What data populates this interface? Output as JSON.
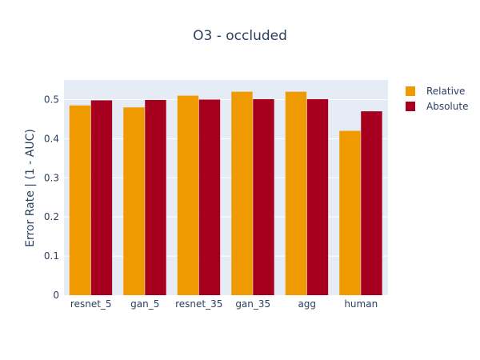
{
  "chart_data": {
    "type": "bar",
    "title": "O3 - occluded",
    "xlabel": "",
    "ylabel": "Error Rate | (1 - AUC)",
    "categories": [
      "resnet_5",
      "gan_5",
      "resnet_35",
      "gan_35",
      "agg",
      "human"
    ],
    "series": [
      {
        "name": "Relative",
        "color": "#ef9a00",
        "values": [
          0.485,
          0.48,
          0.51,
          0.52,
          0.52,
          0.42
        ]
      },
      {
        "name": "Absolute",
        "color": "#a6001e",
        "values": [
          0.498,
          0.499,
          0.5,
          0.501,
          0.501,
          0.47
        ]
      }
    ],
    "ylim": [
      0,
      0.55
    ],
    "yticks": [
      0,
      0.1,
      0.2,
      0.3,
      0.4,
      0.5
    ],
    "ytick_labels": [
      "0",
      "0.1",
      "0.2",
      "0.3",
      "0.4",
      "0.5"
    ],
    "grid": true,
    "legend_position": "top-right",
    "plot_background": "#e5ecf6"
  }
}
